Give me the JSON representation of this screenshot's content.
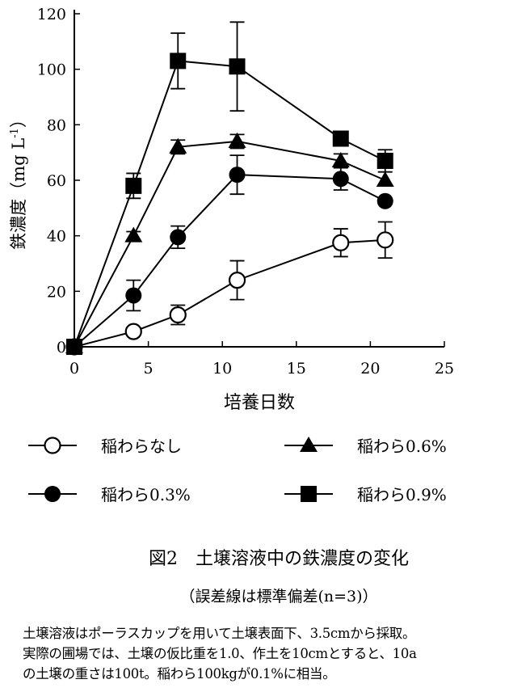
{
  "chart_data": {
    "type": "line",
    "title": "図2　土壌溶液中の鉄濃度の変化",
    "subtitle": "（誤差線は標準偏差(n=3)）",
    "xlabel": "培養日数",
    "ylabel": "鉄濃度（mg L",
    "ylabel_sup": "-1",
    "ylabel_end": "）",
    "xlim": [
      0,
      25
    ],
    "ylim": [
      0,
      120
    ],
    "xticks": [
      0,
      5,
      10,
      15,
      20,
      25
    ],
    "yticks": [
      0,
      20,
      40,
      60,
      80,
      100,
      120
    ],
    "grid": false,
    "legend_position": "bottom",
    "x": [
      0,
      4,
      7,
      11,
      18,
      21
    ],
    "series": [
      {
        "name": "稲わらなし",
        "marker": "open-circle",
        "values": [
          0,
          5.5,
          11.5,
          24,
          37.5,
          38.5
        ],
        "errors": [
          0,
          1,
          3.5,
          7,
          5,
          6.5
        ]
      },
      {
        "name": "稲わら0.3%",
        "marker": "filled-circle",
        "values": [
          0,
          18.5,
          39.5,
          62,
          60.5,
          52.5
        ],
        "errors": [
          0,
          5.5,
          4,
          7,
          4,
          0
        ]
      },
      {
        "name": "稲わら0.6%",
        "marker": "triangle",
        "values": [
          0,
          40,
          72,
          74,
          67,
          60
        ],
        "errors": [
          0,
          1.5,
          2.5,
          2.5,
          2.5,
          0
        ]
      },
      {
        "name": "稲わら0.9%",
        "marker": "square",
        "values": [
          0,
          58,
          103,
          101,
          75,
          67
        ],
        "errors": [
          0,
          4.5,
          10,
          16,
          2,
          4
        ]
      }
    ]
  },
  "notes": [
    "土壌溶液はポーラスカップを用いて土壌表面下、3.5cmから採取。",
    "実際の圃場では、土壌の仮比重を1.0、作土を10cmとすると、10a",
    "の土壌の重さは100t。稲わら100kgが0.1%に相当。"
  ]
}
